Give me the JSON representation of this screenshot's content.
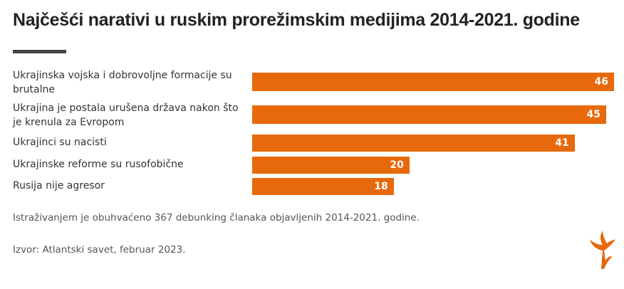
{
  "chart_data": {
    "type": "bar",
    "orientation": "horizontal",
    "title": "Najčešći narativi u ruskim prorežimskim medijima 2014-2021. godine",
    "categories": [
      "Ukrajinska vojska i dobrovoljne formacije su brutalne",
      "Ukrajina je postala urušena država nakon što je krenula za Evropom",
      "Ukrajinci su nacisti",
      "Ukrajinske reforme su rusofobične",
      "Rusija nije agresor"
    ],
    "values": [
      46,
      45,
      41,
      20,
      18
    ],
    "color": "#e8690b",
    "note": "Istraživanjem je obuhvaćeno 367 debunking članaka objavljenih 2014-2021. godine.",
    "source": "Izvor: Atlantski savet, februar 2023."
  }
}
